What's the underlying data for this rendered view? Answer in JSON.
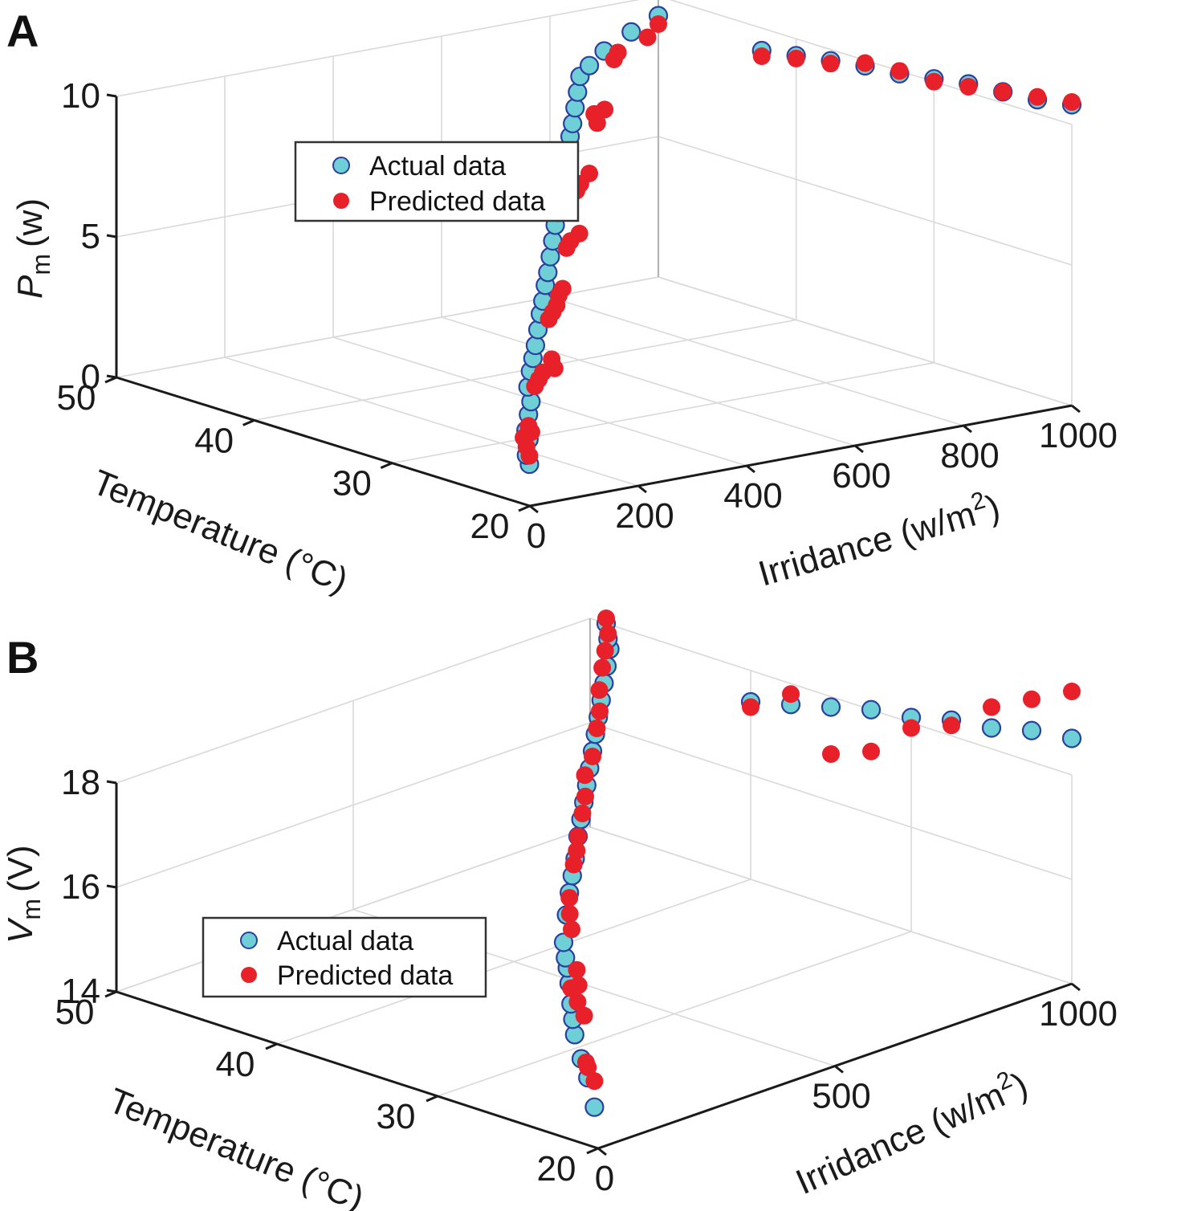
{
  "figure": {
    "panels": [
      "A",
      "B"
    ],
    "legend": {
      "actual": "Actual data",
      "predicted": "Predicted data"
    },
    "colors": {
      "actual_fill": "#6fcfd6",
      "actual_edge": "#2b3f9e",
      "predicted": "#e8202a"
    }
  },
  "chart_data": [
    {
      "type": "scatter",
      "panel": "A",
      "title": "",
      "xlabel": "Irridance (w/m²)",
      "ylabel": "Temperature (°C)",
      "zlabel": "P_m (w)",
      "zlabel_main": "P",
      "zlabel_sub": "m",
      "zlabel_unit": "(w)",
      "xlabel_main": "Irridance (w/m",
      "xlabel_sup": "2",
      "xlabel_end": ")",
      "ylabel_text": "Temperature (°C)",
      "xlim": [
        0,
        1000
      ],
      "ylim": [
        20,
        50
      ],
      "zlim": [
        0,
        10
      ],
      "xticks": [
        "0",
        "200",
        "400",
        "600",
        "800",
        "1000"
      ],
      "yticks": [
        "20",
        "30",
        "40",
        "50"
      ],
      "zticks": [
        "0",
        "5",
        "10"
      ],
      "legend_position": "upper-left",
      "grid": true,
      "series": [
        {
          "name": "Actual data",
          "points": [
            [
              1000,
              20,
              10.7
            ],
            [
              1000,
              22.5,
              10.5
            ],
            [
              1000,
              25,
              10.4
            ],
            [
              1000,
              27.5,
              10.3
            ],
            [
              1000,
              30,
              10.1
            ],
            [
              1000,
              32.5,
              9.9
            ],
            [
              1000,
              35,
              9.8
            ],
            [
              1000,
              37.5,
              9.6
            ],
            [
              1000,
              40,
              9.4
            ],
            [
              1000,
              42.5,
              9.2
            ],
            [
              50,
              22,
              1.0
            ],
            [
              70,
              23,
              1.1
            ],
            [
              100,
              24,
              1.4
            ],
            [
              120,
              25,
              1.5
            ],
            [
              150,
              26,
              1.8
            ],
            [
              180,
              27,
              2.0
            ],
            [
              200,
              28,
              2.3
            ],
            [
              230,
              29,
              2.6
            ],
            [
              260,
              30,
              2.8
            ],
            [
              290,
              31,
              3.0
            ],
            [
              320,
              32,
              3.3
            ],
            [
              350,
              33,
              3.6
            ],
            [
              380,
              34,
              3.8
            ],
            [
              410,
              35,
              4.1
            ],
            [
              440,
              36,
              4.3
            ],
            [
              470,
              37,
              4.6
            ],
            [
              500,
              38,
              4.9
            ],
            [
              530,
              39,
              5.2
            ],
            [
              560,
              40,
              5.4
            ],
            [
              590,
              41,
              5.7
            ],
            [
              620,
              42,
              6.0
            ],
            [
              650,
              43,
              6.2
            ],
            [
              680,
              44,
              6.5
            ],
            [
              710,
              45,
              6.8
            ],
            [
              740,
              46,
              7.0
            ],
            [
              770,
              47,
              7.3
            ],
            [
              800,
              48,
              7.6
            ],
            [
              830,
              49,
              7.9
            ],
            [
              860,
              49.5,
              8.1
            ],
            [
              900,
              50,
              8.4
            ],
            [
              950,
              50,
              8.9
            ],
            [
              1000,
              50,
              9.3
            ]
          ]
        },
        {
          "name": "Predicted data",
          "points": [
            [
              1000,
              20,
              10.8
            ],
            [
              1000,
              22.5,
              10.6
            ],
            [
              1000,
              25,
              10.4
            ],
            [
              1000,
              27.5,
              10.2
            ],
            [
              1000,
              30,
              10.0
            ],
            [
              1000,
              32.5,
              10.0
            ],
            [
              1000,
              35,
              9.9
            ],
            [
              1000,
              37.5,
              9.5
            ],
            [
              1000,
              40,
              9.3
            ],
            [
              1000,
              42.5,
              9.0
            ],
            [
              50,
              22,
              1.3
            ],
            [
              70,
              23,
              1.4
            ],
            [
              90,
              24,
              1.5
            ],
            [
              130,
              25,
              1.4
            ],
            [
              150,
              26,
              1.4
            ],
            [
              200,
              27.5,
              2.4
            ],
            [
              220,
              28,
              2.5
            ],
            [
              240,
              28.5,
              2.6
            ],
            [
              300,
              30,
              2.3
            ],
            [
              320,
              31,
              2.4
            ],
            [
              340,
              32,
              3.6
            ],
            [
              360,
              32.5,
              3.7
            ],
            [
              380,
              33,
              3.8
            ],
            [
              460,
              36,
              3.4
            ],
            [
              480,
              36.5,
              3.5
            ],
            [
              500,
              37,
              4.8
            ],
            [
              520,
              37.5,
              4.9
            ],
            [
              600,
              40,
              4.5
            ],
            [
              620,
              41,
              5.8
            ],
            [
              640,
              41.5,
              5.9
            ],
            [
              720,
              44,
              5.6
            ],
            [
              760,
              45,
              7.1
            ],
            [
              780,
              46,
              7.2
            ],
            [
              850,
              48,
              6.8
            ],
            [
              880,
              48.5,
              8.4
            ],
            [
              900,
              49,
              8.5
            ],
            [
              980,
              50,
              8.6
            ],
            [
              1000,
              50,
              9.0
            ]
          ]
        }
      ]
    },
    {
      "type": "scatter",
      "panel": "B",
      "title": "",
      "xlabel": "Irridance (w/m²)",
      "ylabel": "Temperature (°C)",
      "zlabel": "V_m (V)",
      "zlabel_main": "V",
      "zlabel_sub": "m",
      "zlabel_unit": "(V)",
      "xlabel_main": "Irridance (w/m",
      "xlabel_sup": "2",
      "xlabel_end": ")",
      "ylabel_text": "Temperature (°C)",
      "xlim": [
        0,
        1000
      ],
      "ylim": [
        20,
        50
      ],
      "zlim": [
        14,
        18
      ],
      "xticks": [
        "0",
        "500",
        "1000"
      ],
      "yticks": [
        "20",
        "30",
        "40",
        "50"
      ],
      "zticks": [
        "14",
        "16",
        "18"
      ],
      "legend_position": "lower-left",
      "grid": true,
      "series": [
        {
          "name": "Actual data",
          "points": [
            [
              1000,
              20,
              18.7
            ],
            [
              1000,
              22.5,
              18.6
            ],
            [
              1000,
              25,
              18.4
            ],
            [
              1000,
              27.5,
              18.3
            ],
            [
              1000,
              30,
              18.1
            ],
            [
              1000,
              32.5,
              18.0
            ],
            [
              1000,
              35,
              17.8
            ],
            [
              1000,
              37.5,
              17.6
            ],
            [
              1000,
              40,
              17.4
            ],
            [
              60,
              22,
              14.4
            ],
            [
              80,
              23,
              14.8
            ],
            [
              100,
              24,
              15.0
            ],
            [
              120,
              25,
              15.3
            ],
            [
              150,
              26,
              15.4
            ],
            [
              180,
              27,
              15.5
            ],
            [
              210,
              28,
              15.7
            ],
            [
              240,
              29,
              15.8
            ],
            [
              270,
              30,
              15.8
            ],
            [
              300,
              31,
              15.9
            ],
            [
              340,
              32,
              16.2
            ],
            [
              380,
              33,
              16.4
            ],
            [
              420,
              34,
              16.5
            ],
            [
              460,
              35,
              16.6
            ],
            [
              500,
              36,
              16.8
            ],
            [
              540,
              37,
              16.9
            ],
            [
              580,
              38,
              17.0
            ],
            [
              620,
              39,
              17.1
            ],
            [
              660,
              40,
              17.2
            ],
            [
              700,
              41,
              17.3
            ],
            [
              740,
              42,
              17.4
            ],
            [
              780,
              43,
              17.5
            ],
            [
              820,
              44,
              17.6
            ],
            [
              860,
              45,
              17.7
            ],
            [
              900,
              46,
              17.8
            ],
            [
              940,
              47,
              17.9
            ],
            [
              970,
              48,
              17.9
            ],
            [
              1000,
              49,
              18.0
            ]
          ]
        },
        {
          "name": "Predicted data",
          "points": [
            [
              1000,
              20,
              19.6
            ],
            [
              1000,
              22.5,
              19.2
            ],
            [
              1000,
              25,
              18.8
            ],
            [
              1000,
              27.5,
              18.2
            ],
            [
              1000,
              30,
              17.9
            ],
            [
              1000,
              32.5,
              17.2
            ],
            [
              1000,
              35,
              16.9
            ],
            [
              1000,
              37.5,
              17.8
            ],
            [
              1000,
              40,
              17.3
            ],
            [
              60,
              22,
              14.9
            ],
            [
              80,
              23,
              15.0
            ],
            [
              110,
              24,
              14.9
            ],
            [
              140,
              25,
              15.6
            ],
            [
              160,
              26,
              15.7
            ],
            [
              180,
              27,
              15.8
            ],
            [
              230,
              28,
              15.6
            ],
            [
              260,
              29,
              15.7
            ],
            [
              300,
              30.5,
              16.2
            ],
            [
              330,
              31.5,
              16.3
            ],
            [
              380,
              33,
              16.3
            ],
            [
              440,
              34.5,
              16.6
            ],
            [
              470,
              35.2,
              16.7
            ],
            [
              500,
              36,
              16.8
            ],
            [
              560,
              37.5,
              16.9
            ],
            [
              600,
              38.5,
              17.0
            ],
            [
              650,
              40,
              17.1
            ],
            [
              700,
              41,
              17.2
            ],
            [
              760,
              42.5,
              17.4
            ],
            [
              800,
              43.5,
              17.5
            ],
            [
              850,
              45,
              17.6
            ],
            [
              890,
              46,
              17.8
            ],
            [
              930,
              47,
              17.9
            ],
            [
              970,
              48,
              18.0
            ],
            [
              1000,
              49,
              18.1
            ]
          ]
        }
      ]
    }
  ]
}
